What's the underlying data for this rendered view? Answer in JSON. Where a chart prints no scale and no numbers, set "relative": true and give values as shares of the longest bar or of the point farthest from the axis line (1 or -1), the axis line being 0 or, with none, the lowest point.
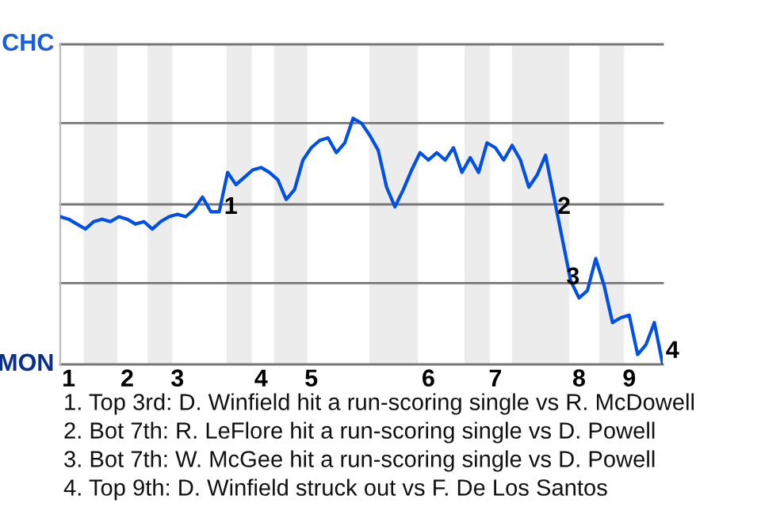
{
  "chart_data": {
    "type": "line",
    "relative": true,
    "categories": [
      null,
      "1",
      null,
      null,
      null,
      null,
      null,
      null,
      "2",
      null,
      null,
      null,
      null,
      null,
      "3",
      null,
      null,
      null,
      null,
      null,
      null,
      null,
      null,
      null,
      "4",
      null,
      null,
      null,
      null,
      null,
      "5",
      null,
      null,
      null,
      null,
      null,
      null,
      null,
      null,
      null,
      null,
      null,
      null,
      null,
      "6",
      null,
      null,
      null,
      null,
      null,
      null,
      null,
      "7",
      null,
      null,
      null,
      null,
      null,
      null,
      null,
      null,
      null,
      "8",
      null,
      null,
      null,
      null,
      null,
      "9",
      null,
      null,
      null,
      null
    ],
    "series": [
      {
        "color": "#0050e6",
        "values": [
          0.6,
          0.59,
          0.57,
          0.55,
          0.58,
          0.59,
          0.58,
          0.6,
          0.59,
          0.57,
          0.58,
          0.55,
          0.58,
          0.6,
          0.61,
          0.6,
          0.63,
          0.68,
          0.62,
          0.62,
          0.78,
          0.73,
          0.76,
          0.79,
          0.8,
          0.78,
          0.75,
          0.67,
          0.71,
          0.83,
          0.88,
          0.91,
          0.92,
          0.86,
          0.9,
          1,
          0.98,
          0.93,
          0.87,
          0.72,
          0.64,
          0.71,
          0.79,
          0.86,
          0.83,
          0.86,
          0.83,
          0.88,
          0.78,
          0.84,
          0.78,
          0.9,
          0.88,
          0.83,
          0.89,
          0.83,
          0.72,
          0.77,
          0.85,
          0.68,
          0.51,
          0.34,
          0.27,
          0.3,
          0.43,
          0.32,
          0.17,
          0.19,
          0.2,
          0.04,
          0.08,
          0.17,
          0
        ]
      }
    ],
    "ref_lines": [
      {
        "axis": "y",
        "value": 0,
        "label": "MON"
      },
      {
        "axis": "y",
        "value": 0.33,
        "label": null
      },
      {
        "axis": "y",
        "value": 0.65,
        "label": null
      },
      {
        "axis": "y",
        "value": 0.98,
        "label": null
      },
      {
        "axis": "y",
        "value": 1.3,
        "label": "CHC"
      }
    ],
    "annotations": [
      "1",
      "2",
      "3",
      "4",
      "1. Top 3rd: D. Winfield hit a run-scoring single vs R. McDowell",
      "2. Bot 7th: R. LeFlore hit a run-scoring single vs D. Powell",
      "3. Bot 7th: W. McGee hit a run-scoring single vs D. Powell",
      "4. Top 9th: D. Winfield struck out vs F. De Los Santos"
    ]
  }
}
